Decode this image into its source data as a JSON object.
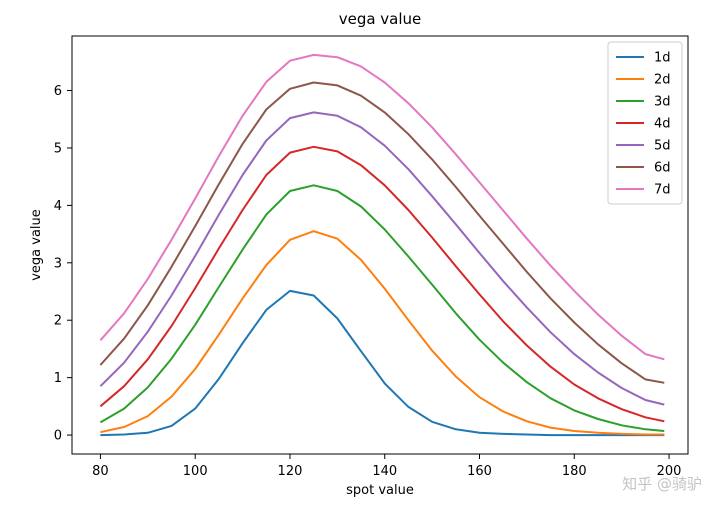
{
  "chart_data": {
    "type": "line",
    "title": "vega value",
    "xlabel": "spot value",
    "ylabel": "vega value",
    "xlim": [
      74,
      204
    ],
    "ylim": [
      -0.33,
      6.95
    ],
    "xticks": [
      80,
      100,
      120,
      140,
      160,
      180,
      200
    ],
    "yticks": [
      0,
      1,
      2,
      3,
      4,
      5,
      6
    ],
    "grid": false,
    "legend_position": "top-right",
    "series": [
      {
        "name": "1d",
        "color": "#1f77b4",
        "x": [
          80,
          85,
          90,
          95,
          100,
          105,
          110,
          115,
          120,
          125,
          130,
          135,
          140,
          145,
          150,
          155,
          160,
          165,
          170,
          175,
          180,
          185,
          190,
          195,
          199
        ],
        "y": [
          0.0,
          0.01,
          0.04,
          0.16,
          0.46,
          0.98,
          1.6,
          2.18,
          2.51,
          2.43,
          2.03,
          1.46,
          0.9,
          0.49,
          0.23,
          0.1,
          0.04,
          0.02,
          0.01,
          0.0,
          0.0,
          0.0,
          0.0,
          0.0,
          0.0
        ]
      },
      {
        "name": "2d",
        "color": "#ff7f0e",
        "x": [
          80,
          85,
          90,
          95,
          100,
          105,
          110,
          115,
          120,
          125,
          130,
          135,
          140,
          145,
          150,
          155,
          160,
          165,
          170,
          175,
          180,
          185,
          190,
          195,
          199
        ],
        "y": [
          0.05,
          0.14,
          0.33,
          0.67,
          1.15,
          1.75,
          2.38,
          2.96,
          3.4,
          3.55,
          3.42,
          3.05,
          2.55,
          2.0,
          1.47,
          1.02,
          0.66,
          0.41,
          0.24,
          0.13,
          0.07,
          0.04,
          0.02,
          0.01,
          0.01
        ]
      },
      {
        "name": "3d",
        "color": "#2ca02c",
        "x": [
          80,
          85,
          90,
          95,
          100,
          105,
          110,
          115,
          120,
          125,
          130,
          135,
          140,
          145,
          150,
          155,
          160,
          165,
          170,
          175,
          180,
          185,
          190,
          195,
          199
        ],
        "y": [
          0.22,
          0.46,
          0.83,
          1.33,
          1.92,
          2.58,
          3.23,
          3.84,
          4.25,
          4.35,
          4.25,
          3.98,
          3.58,
          3.11,
          2.62,
          2.12,
          1.66,
          1.26,
          0.92,
          0.64,
          0.43,
          0.28,
          0.17,
          0.1,
          0.07
        ]
      },
      {
        "name": "4d",
        "color": "#d62728",
        "x": [
          80,
          85,
          90,
          95,
          100,
          105,
          110,
          115,
          120,
          125,
          130,
          135,
          140,
          145,
          150,
          155,
          160,
          165,
          170,
          175,
          180,
          185,
          190,
          195,
          199
        ],
        "y": [
          0.5,
          0.85,
          1.32,
          1.9,
          2.56,
          3.25,
          3.92,
          4.53,
          4.92,
          5.02,
          4.94,
          4.7,
          4.35,
          3.92,
          3.44,
          2.94,
          2.45,
          1.98,
          1.56,
          1.19,
          0.88,
          0.64,
          0.45,
          0.31,
          0.24
        ]
      },
      {
        "name": "5d",
        "color": "#9467bd",
        "x": [
          80,
          85,
          90,
          95,
          100,
          105,
          110,
          115,
          120,
          125,
          130,
          135,
          140,
          145,
          150,
          155,
          160,
          165,
          170,
          175,
          180,
          185,
          190,
          195,
          199
        ],
        "y": [
          0.85,
          1.26,
          1.8,
          2.43,
          3.12,
          3.84,
          4.53,
          5.13,
          5.52,
          5.62,
          5.56,
          5.36,
          5.04,
          4.63,
          4.16,
          3.67,
          3.17,
          2.68,
          2.22,
          1.79,
          1.41,
          1.09,
          0.82,
          0.61,
          0.53
        ]
      },
      {
        "name": "6d",
        "color": "#8c564b",
        "x": [
          80,
          85,
          90,
          95,
          100,
          105,
          110,
          115,
          120,
          125,
          130,
          135,
          140,
          145,
          150,
          155,
          160,
          165,
          170,
          175,
          180,
          185,
          190,
          195,
          199
        ],
        "y": [
          1.22,
          1.68,
          2.26,
          2.93,
          3.64,
          4.37,
          5.07,
          5.67,
          6.03,
          6.14,
          6.09,
          5.91,
          5.62,
          5.24,
          4.8,
          4.32,
          3.82,
          3.33,
          2.84,
          2.38,
          1.96,
          1.58,
          1.25,
          0.97,
          0.91
        ]
      },
      {
        "name": "7d",
        "color": "#e377c2",
        "x": [
          80,
          85,
          90,
          95,
          100,
          105,
          110,
          115,
          120,
          125,
          130,
          135,
          140,
          145,
          150,
          155,
          160,
          165,
          170,
          175,
          180,
          185,
          190,
          195,
          199
        ],
        "y": [
          1.65,
          2.12,
          2.72,
          3.4,
          4.12,
          4.86,
          5.56,
          6.15,
          6.52,
          6.62,
          6.58,
          6.42,
          6.14,
          5.78,
          5.36,
          4.89,
          4.4,
          3.91,
          3.42,
          2.95,
          2.51,
          2.1,
          1.73,
          1.41,
          1.32
        ]
      }
    ]
  },
  "watermark": "知乎 @骑驴"
}
